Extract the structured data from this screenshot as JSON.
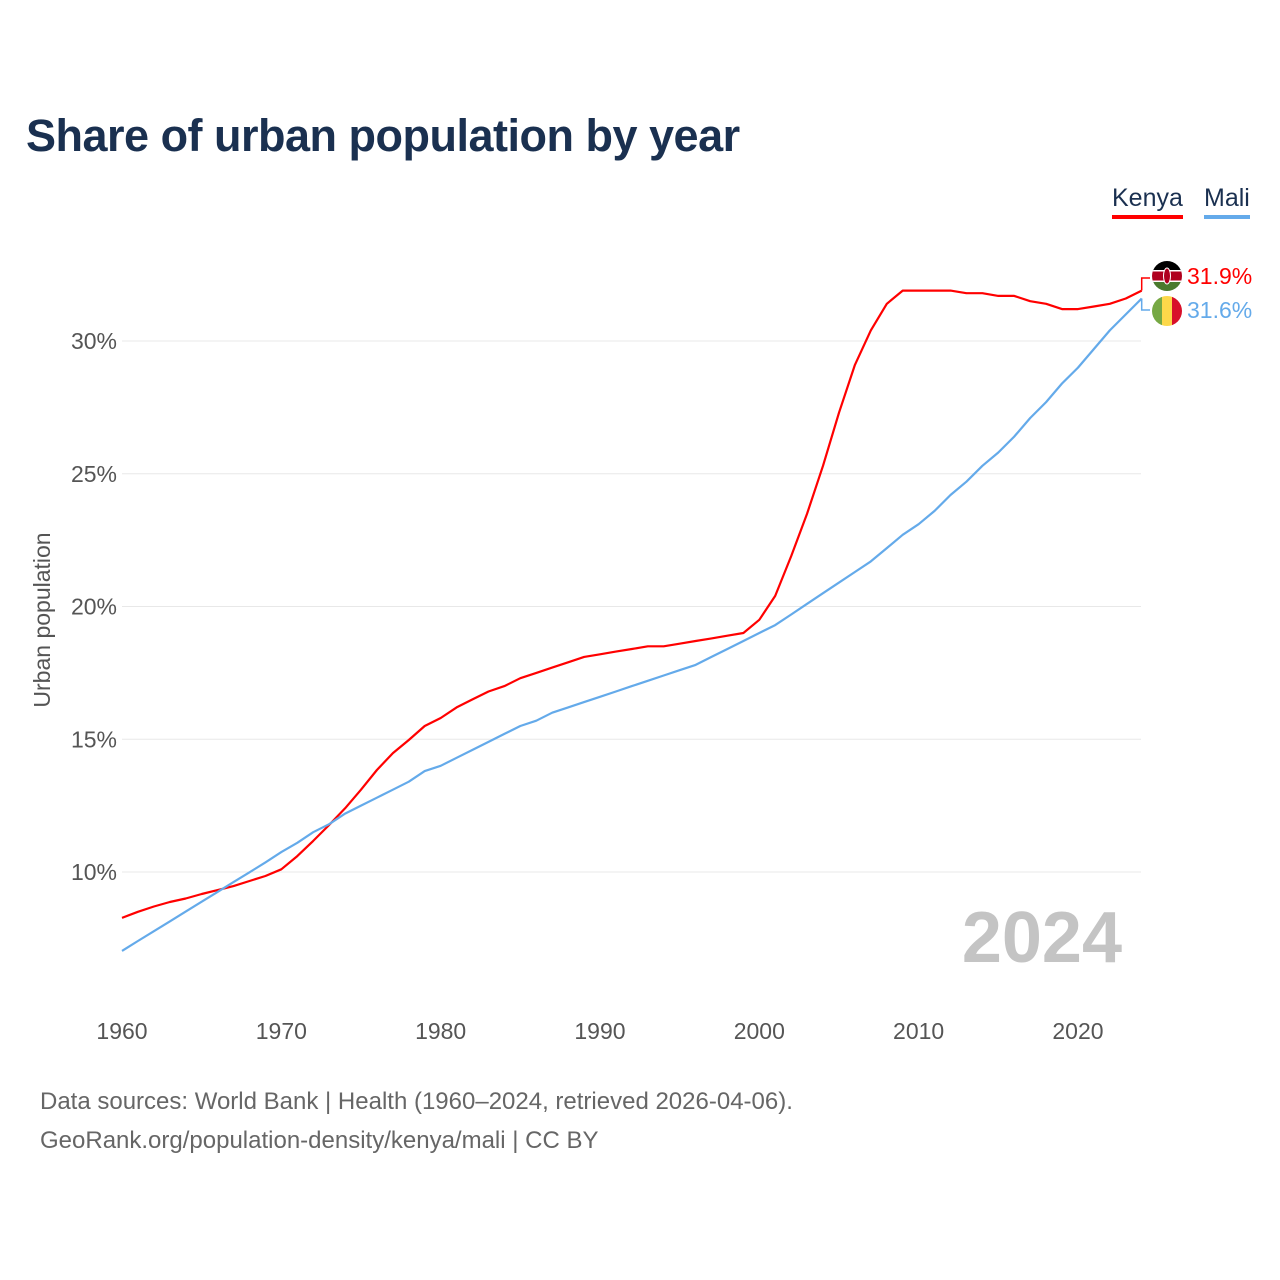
{
  "title": "Share of urban population by year",
  "legend": [
    {
      "label": "Kenya",
      "color": "#ff0000"
    },
    {
      "label": "Mali",
      "color": "#64aaea"
    }
  ],
  "year_watermark": "2024",
  "end_labels": {
    "kenya": "31.9%",
    "mali": "31.6%"
  },
  "footer": {
    "line1": "Data sources: World Bank | Health (1960–2024, retrieved 2026-04-06).",
    "line2": "GeoRank.org/population-density/kenya/mali | CC BY"
  },
  "chart_data": {
    "type": "line",
    "title": "Share of urban population by year",
    "xlabel": "",
    "ylabel": "Urban population",
    "xlim": [
      1960,
      2024
    ],
    "ylim": [
      6.7,
      33.0
    ],
    "x_ticks": [
      1960,
      1970,
      1980,
      1990,
      2000,
      2010,
      2020
    ],
    "x_tick_labels": [
      "1960",
      "1970",
      "1980",
      "1990",
      "2000",
      "2010",
      "2020"
    ],
    "y_ticks": [
      10,
      15,
      20,
      25,
      30
    ],
    "y_tick_labels": [
      "10%",
      "15%",
      "20%",
      "25%",
      "30%"
    ],
    "grid": true,
    "legend_position": "top-right",
    "x": [
      1960,
      1961,
      1962,
      1963,
      1964,
      1965,
      1966,
      1967,
      1968,
      1969,
      1970,
      1971,
      1972,
      1973,
      1974,
      1975,
      1976,
      1977,
      1978,
      1979,
      1980,
      1981,
      1982,
      1983,
      1984,
      1985,
      1986,
      1987,
      1988,
      1989,
      1990,
      1991,
      1992,
      1993,
      1994,
      1995,
      1996,
      1997,
      1998,
      1999,
      2000,
      2001,
      2002,
      2003,
      2004,
      2005,
      2006,
      2007,
      2008,
      2009,
      2010,
      2011,
      2012,
      2013,
      2014,
      2015,
      2016,
      2017,
      2018,
      2019,
      2020,
      2021,
      2022,
      2023,
      2024
    ],
    "series": [
      {
        "name": "Kenya",
        "color": "#ff0000",
        "values": [
          8.27,
          8.5,
          8.7,
          8.87,
          9.0,
          9.17,
          9.32,
          9.47,
          9.66,
          9.85,
          10.1,
          10.6,
          11.17,
          11.77,
          12.4,
          13.1,
          13.84,
          14.48,
          14.97,
          15.5,
          15.8,
          16.2,
          16.5,
          16.8,
          17.0,
          17.3,
          17.5,
          17.7,
          17.9,
          18.1,
          18.2,
          18.3,
          18.4,
          18.5,
          18.5,
          18.6,
          18.7,
          18.8,
          18.9,
          19.0,
          19.5,
          20.4,
          21.9,
          23.5,
          25.3,
          27.3,
          29.1,
          30.4,
          31.4,
          31.9,
          31.9,
          31.9,
          31.9,
          31.8,
          31.8,
          31.7,
          31.7,
          31.5,
          31.4,
          31.2,
          31.2,
          31.3,
          31.4,
          31.6,
          31.9
        ]
      },
      {
        "name": "Mali",
        "color": "#64aaea",
        "values": [
          7.03,
          7.4,
          7.77,
          8.14,
          8.51,
          8.88,
          9.25,
          9.62,
          9.99,
          10.36,
          10.75,
          11.1,
          11.5,
          11.8,
          12.2,
          12.5,
          12.8,
          13.1,
          13.4,
          13.8,
          14.0,
          14.3,
          14.6,
          14.9,
          15.2,
          15.5,
          15.7,
          16.0,
          16.2,
          16.4,
          16.6,
          16.8,
          17.0,
          17.2,
          17.4,
          17.6,
          17.8,
          18.1,
          18.4,
          18.7,
          19.0,
          19.3,
          19.7,
          20.1,
          20.5,
          20.9,
          21.3,
          21.7,
          22.2,
          22.7,
          23.1,
          23.6,
          24.2,
          24.7,
          25.3,
          25.8,
          26.4,
          27.1,
          27.7,
          28.4,
          29.0,
          29.7,
          30.4,
          31.0,
          31.6
        ]
      }
    ]
  }
}
